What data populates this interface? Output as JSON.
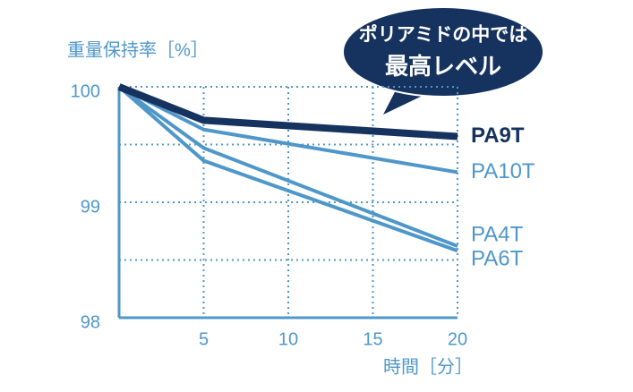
{
  "chart_data": {
    "type": "line",
    "y_label": "重量保持率［%］",
    "x_label": "時間［分］",
    "annotation": [
      "ポリアミドの中では",
      "最高レベル"
    ],
    "x": [
      0,
      5,
      20
    ],
    "series": [
      {
        "name": "PA9T",
        "color": "#16325f",
        "values": [
          100,
          99.71,
          99.57
        ]
      },
      {
        "name": "PA10T",
        "color": "#4f97c9",
        "values": [
          100,
          99.63,
          99.26
        ]
      },
      {
        "name": "PA4T",
        "color": "#4f97c9",
        "values": [
          100,
          99.47,
          98.62
        ]
      },
      {
        "name": "PA6T",
        "color": "#4f97c9",
        "values": [
          100,
          99.36,
          98.58
        ]
      }
    ],
    "xlim": [
      0,
      20
    ],
    "ylim": [
      98,
      100
    ],
    "xticks": [
      5,
      10,
      15,
      20
    ],
    "yticks": [
      98,
      99,
      100
    ],
    "ygrid": [
      98.5,
      99,
      99.5,
      100
    ],
    "grid": true
  }
}
